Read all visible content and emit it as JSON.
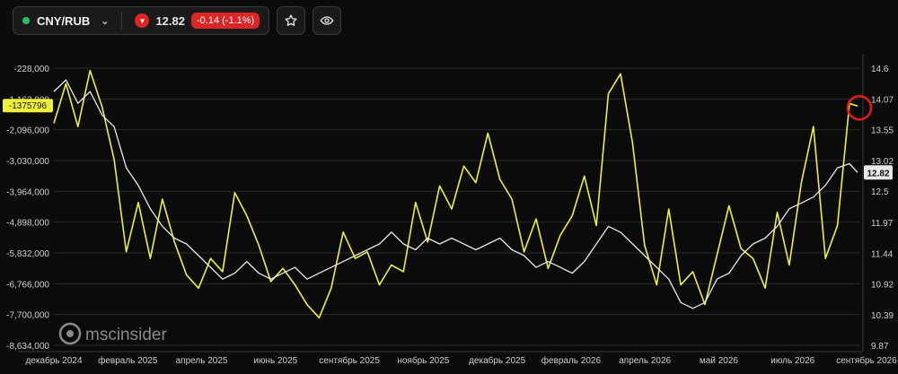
{
  "toolbar": {
    "ticker": "CNY/RUB",
    "price": "12.82",
    "change": "-0.14 (-1.1%)"
  },
  "watermark": "mscinsider",
  "colors": {
    "yellow": "#eef03a",
    "white": "#e8e8e8",
    "red": "#dc2626",
    "green": "#22c55e"
  },
  "chart_data": {
    "type": "line",
    "x_labels": [
      "декабрь 2024",
      "февраль 2025",
      "апрель 2025",
      "июнь 2025",
      "сентябрь 2025",
      "ноябрь 2025",
      "декабрь 2025",
      "февраль 2026",
      "апрель 2026",
      "май 2026",
      "июль 2026",
      "сентябрь 2026"
    ],
    "y_left_ticks": [
      "-228,000",
      "-1,162,000",
      "-2,096,000",
      "-3,030,000",
      "-3,964,000",
      "-4,898,000",
      "-5,832,000",
      "-6,766,000",
      "-7,700,000",
      "-8,634,000"
    ],
    "y_left_range": [
      -8634000,
      -228000
    ],
    "y_right_ticks": [
      "14.6",
      "14.07",
      "13.55",
      "13.02",
      "12.5",
      "11.97",
      "11.44",
      "10.92",
      "10.39",
      "9.87"
    ],
    "y_right_range": [
      9.87,
      14.6
    ],
    "left_marker": "-1375796",
    "right_marker": "12.82",
    "series": [
      {
        "axis": "left",
        "color": "#eef03a",
        "x": [
          0,
          0.015,
          0.03,
          0.045,
          0.06,
          0.075,
          0.09,
          0.105,
          0.12,
          0.135,
          0.15,
          0.165,
          0.18,
          0.195,
          0.21,
          0.225,
          0.24,
          0.255,
          0.27,
          0.285,
          0.3,
          0.315,
          0.33,
          0.345,
          0.36,
          0.375,
          0.39,
          0.405,
          0.42,
          0.435,
          0.45,
          0.465,
          0.48,
          0.495,
          0.51,
          0.525,
          0.54,
          0.555,
          0.57,
          0.585,
          0.6,
          0.615,
          0.63,
          0.645,
          0.66,
          0.675,
          0.69,
          0.705,
          0.72,
          0.735,
          0.75,
          0.765,
          0.78,
          0.795,
          0.81,
          0.825,
          0.84,
          0.855,
          0.87,
          0.885,
          0.9,
          0.915,
          0.93,
          0.945,
          0.96,
          0.975,
          0.99,
          1.0
        ],
        "values": [
          -1900000,
          -700000,
          -2000000,
          -300000,
          -1400000,
          -3000000,
          -5800000,
          -4300000,
          -6000000,
          -4200000,
          -5500000,
          -6500000,
          -6900000,
          -6000000,
          -6400000,
          -4000000,
          -4700000,
          -5600000,
          -6700000,
          -6300000,
          -6800000,
          -7400000,
          -7800000,
          -6900000,
          -5200000,
          -6000000,
          -5800000,
          -6800000,
          -6200000,
          -6400000,
          -4300000,
          -5500000,
          -3800000,
          -4500000,
          -3200000,
          -3700000,
          -2200000,
          -3600000,
          -4200000,
          -5800000,
          -4800000,
          -6300000,
          -5300000,
          -4700000,
          -3500000,
          -5000000,
          -1000000,
          -400000,
          -2500000,
          -5600000,
          -6800000,
          -4500000,
          -6800000,
          -6400000,
          -7400000,
          -5900000,
          -4400000,
          -5700000,
          -6000000,
          -6900000,
          -4600000,
          -6200000,
          -3700000,
          -2000000,
          -6000000,
          -5000000,
          -1300000,
          -1375796
        ]
      },
      {
        "axis": "right",
        "color": "#e8e8e8",
        "x": [
          0,
          0.015,
          0.03,
          0.045,
          0.06,
          0.075,
          0.09,
          0.105,
          0.12,
          0.135,
          0.15,
          0.165,
          0.18,
          0.195,
          0.21,
          0.225,
          0.24,
          0.255,
          0.27,
          0.285,
          0.3,
          0.315,
          0.33,
          0.345,
          0.36,
          0.375,
          0.39,
          0.405,
          0.42,
          0.435,
          0.45,
          0.465,
          0.48,
          0.495,
          0.51,
          0.525,
          0.54,
          0.555,
          0.57,
          0.585,
          0.6,
          0.615,
          0.63,
          0.645,
          0.66,
          0.675,
          0.69,
          0.705,
          0.72,
          0.735,
          0.75,
          0.765,
          0.78,
          0.795,
          0.81,
          0.825,
          0.84,
          0.855,
          0.87,
          0.885,
          0.9,
          0.915,
          0.93,
          0.945,
          0.96,
          0.975,
          0.99,
          1.0
        ],
        "values": [
          14.2,
          14.4,
          14.0,
          14.2,
          13.8,
          13.6,
          12.9,
          12.6,
          12.2,
          11.9,
          11.7,
          11.6,
          11.4,
          11.2,
          11.0,
          11.1,
          11.3,
          11.1,
          11.0,
          11.1,
          11.2,
          11.0,
          11.1,
          11.2,
          11.3,
          11.4,
          11.5,
          11.6,
          11.8,
          11.6,
          11.5,
          11.7,
          11.6,
          11.7,
          11.6,
          11.5,
          11.6,
          11.7,
          11.5,
          11.4,
          11.2,
          11.3,
          11.2,
          11.1,
          11.3,
          11.6,
          11.9,
          11.8,
          11.6,
          11.4,
          11.2,
          11.0,
          10.6,
          10.5,
          10.6,
          11.0,
          11.1,
          11.4,
          11.6,
          11.7,
          11.9,
          12.2,
          12.3,
          12.4,
          12.6,
          12.9,
          12.97,
          12.82
        ]
      }
    ]
  }
}
